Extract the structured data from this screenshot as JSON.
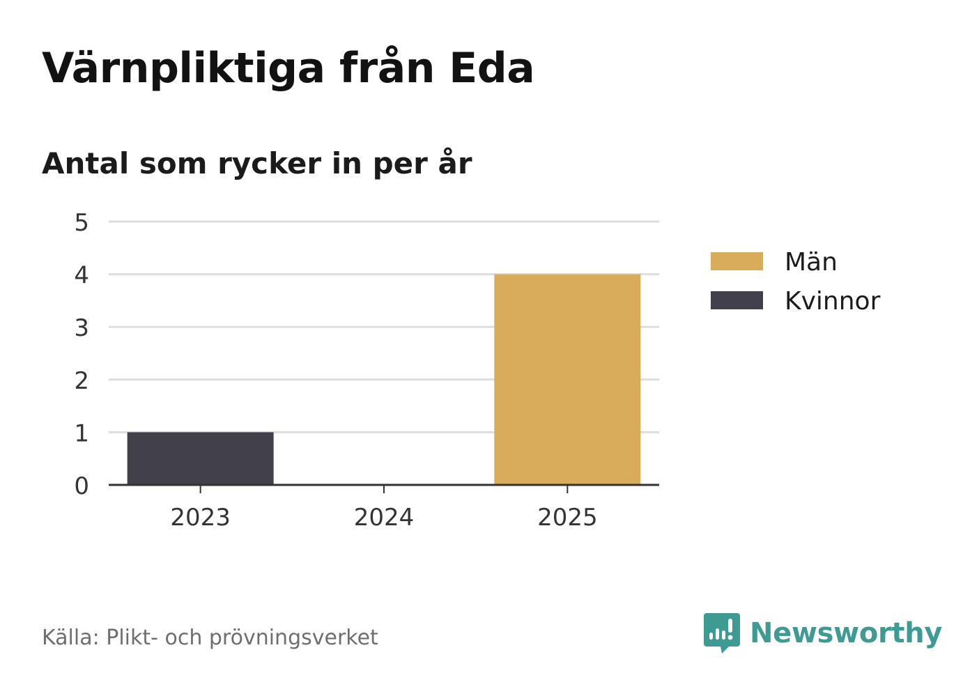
{
  "title": "Värnpliktiga från Eda",
  "subtitle": "Antal som rycker in per år",
  "source": "Källa: Plikt- och prövningsverket",
  "brand": "Newsworthy",
  "colors": {
    "man": "#d9ac5b",
    "kvinnor": "#42404b",
    "brand": "#3d9b93",
    "grid": "#dddddd",
    "axis": "#333333"
  },
  "chart_data": {
    "type": "bar",
    "stacked": true,
    "categories": [
      "2023",
      "2024",
      "2025"
    ],
    "series": [
      {
        "name": "Män",
        "color": "#d9ac5b",
        "values": [
          0,
          0,
          4
        ]
      },
      {
        "name": "Kvinnor",
        "color": "#42404b",
        "values": [
          1,
          0,
          0
        ]
      }
    ],
    "ylim": [
      0,
      5
    ],
    "yticks": [
      "0",
      "1",
      "2",
      "3",
      "4",
      "5"
    ],
    "grid": true,
    "legend": "right"
  }
}
